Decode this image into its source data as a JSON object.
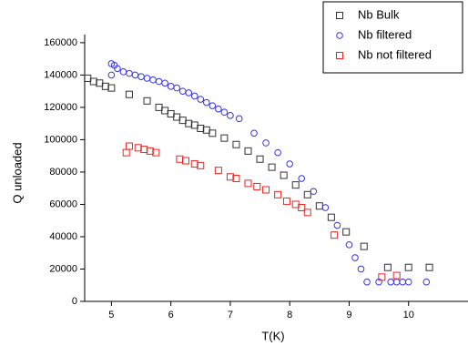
{
  "chart_data": {
    "type": "scatter",
    "x_label": "T(K)",
    "y_label": "Q unloaded",
    "xlim": [
      4.55,
      11
    ],
    "ylim": [
      0,
      165000
    ],
    "xticks": [
      5,
      6,
      7,
      8,
      9,
      10
    ],
    "yticks": [
      0,
      20000,
      40000,
      60000,
      80000,
      100000,
      120000,
      140000,
      160000
    ],
    "legend": "top-right",
    "series": [
      {
        "name": "Nb Bulk",
        "color": "#333333",
        "marker": "square",
        "x": [
          4.6,
          4.7,
          4.8,
          4.9,
          5.0,
          5.3,
          5.6,
          5.8,
          5.9,
          6.0,
          6.1,
          6.2,
          6.3,
          6.4,
          6.5,
          6.6,
          6.7,
          6.9,
          7.1,
          7.3,
          7.5,
          7.7,
          7.9,
          8.1,
          8.3,
          8.5,
          8.7,
          8.95,
          9.25,
          9.65,
          10.0,
          10.35
        ],
        "values": [
          138000,
          136000,
          135000,
          133000,
          132000,
          128000,
          124000,
          120000,
          118000,
          116000,
          114000,
          112000,
          110000,
          109000,
          107000,
          106000,
          104000,
          101000,
          97000,
          93000,
          88000,
          83000,
          78000,
          72000,
          66000,
          59000,
          52000,
          43000,
          34000,
          21000,
          21000,
          21000
        ]
      },
      {
        "name": "Nb filtered",
        "color": "#3333ee",
        "marker": "circle",
        "x": [
          5.0,
          5.0,
          5.05,
          5.1,
          5.2,
          5.3,
          5.4,
          5.5,
          5.6,
          5.7,
          5.8,
          5.9,
          6.0,
          6.1,
          6.2,
          6.3,
          6.4,
          6.5,
          6.6,
          6.7,
          6.8,
          6.9,
          7.0,
          7.15,
          7.4,
          7.6,
          7.8,
          8.0,
          8.2,
          8.4,
          8.6,
          8.8,
          9.0,
          9.1,
          9.2,
          9.3,
          9.5,
          9.7,
          9.8,
          9.9,
          10.0,
          10.3
        ],
        "values": [
          140000,
          147000,
          146000,
          144000,
          142000,
          141000,
          140000,
          139000,
          138000,
          137000,
          136000,
          135000,
          133000,
          132000,
          130000,
          129000,
          127000,
          125000,
          123000,
          121000,
          119000,
          117000,
          115000,
          113000,
          104000,
          98000,
          92000,
          85000,
          76000,
          68000,
          58000,
          47000,
          35000,
          27000,
          20000,
          12000,
          12000,
          12000,
          12000,
          12000,
          12000,
          12000
        ]
      },
      {
        "name": "Nb not filtered",
        "color": "#ee2222",
        "marker": "square",
        "x": [
          5.25,
          5.3,
          5.45,
          5.55,
          5.65,
          5.75,
          6.15,
          6.25,
          6.4,
          6.5,
          6.8,
          7.0,
          7.1,
          7.3,
          7.45,
          7.6,
          7.8,
          7.95,
          8.1,
          8.2,
          8.3,
          8.75,
          9.55,
          9.8
        ],
        "values": [
          92000,
          96000,
          95000,
          94000,
          93000,
          92000,
          88000,
          87000,
          85000,
          84000,
          81000,
          77000,
          76000,
          73000,
          71000,
          69000,
          66000,
          62000,
          60000,
          58000,
          55000,
          41000,
          15000,
          16000
        ]
      }
    ]
  }
}
